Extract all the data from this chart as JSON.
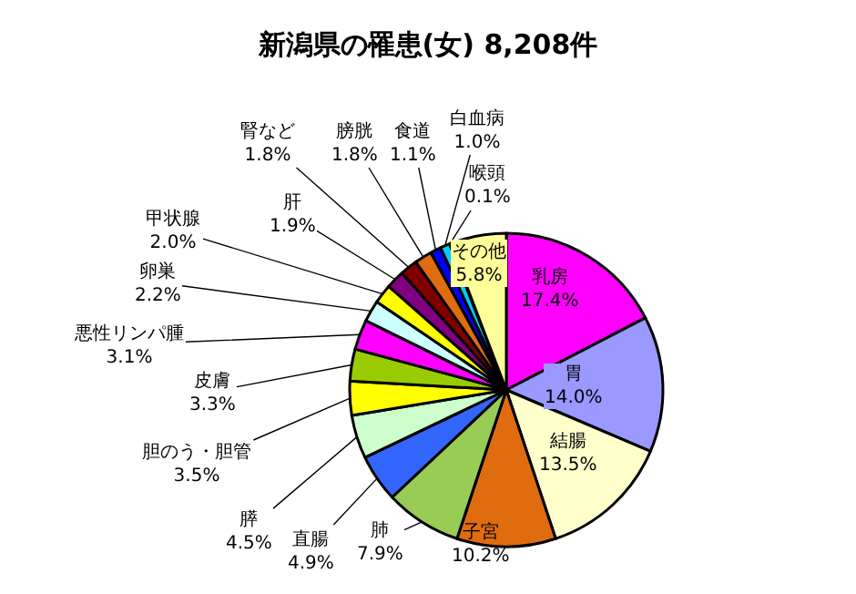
{
  "chart_data": {
    "type": "pie",
    "title": "新潟県の罹患(女) 8,208件",
    "categories": [
      "乳房",
      "胃",
      "結腸",
      "子宮",
      "肺",
      "直腸",
      "膵",
      "胆のう・胆管",
      "皮膚",
      "悪性リンパ腫",
      "卵巣",
      "甲状腺",
      "肝",
      "腎など",
      "膀胱",
      "食道",
      "白血病",
      "喉頭",
      "その他"
    ],
    "values": [
      17.4,
      14.0,
      13.5,
      10.2,
      7.9,
      4.9,
      4.5,
      3.5,
      3.3,
      3.1,
      2.2,
      2.0,
      1.9,
      1.8,
      1.8,
      1.1,
      1.0,
      0.1,
      5.8
    ],
    "colors": [
      "#ff00ff",
      "#9999ff",
      "#ffffcc",
      "#e06c10",
      "#99cc55",
      "#3366ff",
      "#ccffcc",
      "#ffff00",
      "#99cc00",
      "#ff00ff",
      "#ccffff",
      "#ffff00",
      "#800080",
      "#800000",
      "#e06c10",
      "#0000ff",
      "#00ccff",
      "#99ccff",
      "#ffff99"
    ],
    "value_labels": [
      "17.4%",
      "14.0%",
      "13.5%",
      "10.2%",
      "7.9%",
      "4.9%",
      "4.5%",
      "3.5%",
      "3.3%",
      "3.1%",
      "2.2%",
      "2.0%",
      "1.9%",
      "1.8%",
      "1.8%",
      "1.1%",
      "1.0%",
      "0.1%",
      "5.8%"
    ],
    "legend": false
  }
}
